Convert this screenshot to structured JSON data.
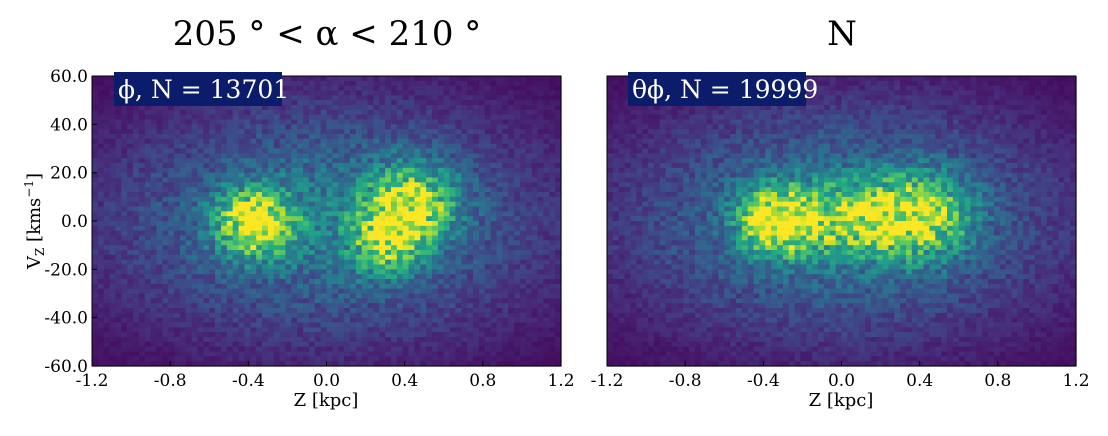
{
  "colors": {
    "background_low": "#440154",
    "mid": "#21918c",
    "high": "#fde725",
    "badge_bg": "#0a1c6a",
    "badge_text": "#ffffff"
  },
  "chart_data": [
    {
      "type": "heatmap",
      "title": "205 ° < α < 210 °",
      "badge": "ϕ, N = 13701",
      "xlabel": "Z [kpc]",
      "ylabel": "V_Z [kms^-1]",
      "xlim": [
        -1.2,
        1.2
      ],
      "ylim": [
        -60.0,
        60.0
      ],
      "x_ticks": [
        "-1.2",
        "-0.8",
        "-0.4",
        "0.0",
        "0.4",
        "0.8",
        "1.2"
      ],
      "y_ticks": [
        "60.0",
        "40.0",
        "20.0",
        "0.0",
        "-20.0",
        "-40.0",
        "-60.0"
      ],
      "density_peaks": [
        {
          "z": -0.36,
          "vz": -1,
          "sigma_z": 0.13,
          "sigma_vz": 9,
          "weight": 1.0
        },
        {
          "z": 0.3,
          "vz": -7,
          "sigma_z": 0.12,
          "sigma_vz": 10,
          "weight": 0.62
        },
        {
          "z": 0.44,
          "vz": 7,
          "sigma_z": 0.15,
          "sigma_vz": 11,
          "weight": 0.72
        }
      ]
    },
    {
      "type": "heatmap",
      "title": "N",
      "badge": "θϕ, N = 19999",
      "xlabel": "Z [kpc]",
      "ylabel": "",
      "xlim": [
        -1.2,
        1.2
      ],
      "ylim": [
        -60.0,
        60.0
      ],
      "x_ticks": [
        "-1.2",
        "-0.8",
        "-0.4",
        "0.0",
        "0.4",
        "0.8",
        "1.2"
      ],
      "y_ticks": [],
      "density_peaks": [
        {
          "z": -0.32,
          "vz": 0,
          "sigma_z": 0.13,
          "sigma_vz": 9,
          "weight": 1.0
        },
        {
          "z": 0.05,
          "vz": 1,
          "sigma_z": 0.2,
          "sigma_vz": 10,
          "weight": 0.55
        },
        {
          "z": 0.4,
          "vz": 2,
          "sigma_z": 0.17,
          "sigma_vz": 11,
          "weight": 0.72
        }
      ]
    }
  ]
}
